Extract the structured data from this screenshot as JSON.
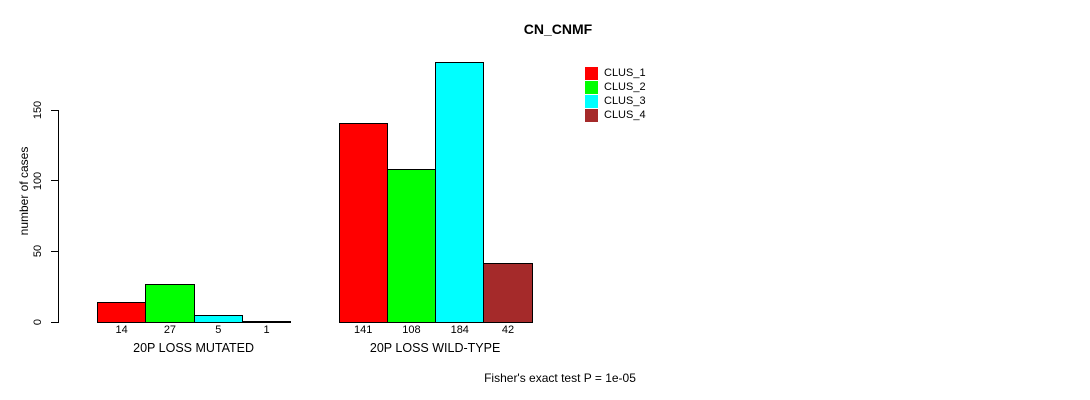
{
  "chart_data": {
    "type": "bar",
    "title": "CN_CNMF",
    "ylabel": "number of cases",
    "xlabel": "",
    "categories": [
      "20P LOSS MUTATED",
      "20P LOSS WILD-TYPE"
    ],
    "series": [
      {
        "name": "CLUS_1",
        "color": "#FF0000",
        "values": [
          14,
          141
        ]
      },
      {
        "name": "CLUS_2",
        "color": "#00FF00",
        "values": [
          27,
          108
        ]
      },
      {
        "name": "CLUS_3",
        "color": "#00FFFF",
        "values": [
          5,
          184
        ]
      },
      {
        "name": "CLUS_4",
        "color": "#A52A2A",
        "values": [
          1,
          42
        ]
      }
    ],
    "y_ticks": [
      0,
      50,
      100,
      150
    ],
    "ylim": [
      0,
      150
    ],
    "grid": false,
    "legend_position": "top-right",
    "bar_value_labels_shown": true,
    "annotation": "Fisher's exact test P = 1e-05"
  }
}
